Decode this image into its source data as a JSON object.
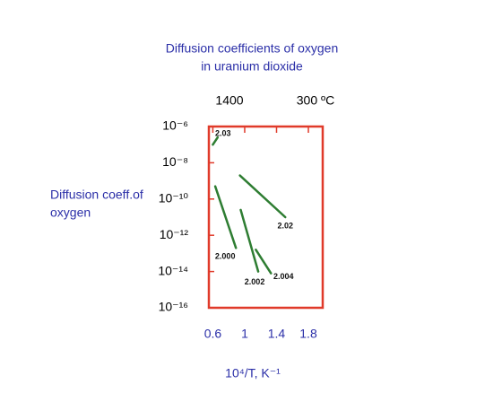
{
  "chart_data": {
    "type": "line",
    "title": [
      "Diffusion coefficients of oxygen",
      "in uranium dioxide"
    ],
    "top_axis_labels": [
      "1400",
      "300 ºC"
    ],
    "ylabel": [
      "Diffusion coeff.of",
      "oxygen"
    ],
    "xlabel": "10⁴/T, K⁻¹",
    "xlim": [
      0.55,
      1.98
    ],
    "xticks": [
      0.6,
      1,
      1.4,
      1.8
    ],
    "ylim": [
      1e-16,
      1e-06
    ],
    "log_y": true,
    "yticks": [
      {
        "value": 1e-06,
        "label": "10⁻⁶"
      },
      {
        "value": 1e-08,
        "label": "10⁻⁸"
      },
      {
        "value": 1e-10,
        "label": "10⁻¹⁰"
      },
      {
        "value": 1e-12,
        "label": "10⁻¹²"
      },
      {
        "value": 1e-14,
        "label": "10⁻¹⁴"
      },
      {
        "value": 1e-16,
        "label": "10⁻¹⁶"
      }
    ],
    "frame_color": "#e03a2a",
    "series": [
      {
        "name": "2.03",
        "color": "#2e7d32",
        "x": [
          0.6,
          0.66
        ],
        "values": [
          1e-07,
          2.5e-07
        ]
      },
      {
        "name": "2.02",
        "color": "#2e7d32",
        "x": [
          0.94,
          1.51
        ],
        "values": [
          2e-09,
          1e-11
        ]
      },
      {
        "name": "2.000",
        "color": "#2e7d32",
        "x": [
          0.63,
          0.89
        ],
        "values": [
          5e-10,
          2e-13
        ]
      },
      {
        "name": "2.002",
        "color": "#2e7d32",
        "x": [
          0.95,
          1.17
        ],
        "values": [
          2.5e-11,
          1e-14
        ]
      },
      {
        "name": "2.004",
        "color": "#2e7d32",
        "x": [
          1.14,
          1.33
        ],
        "values": [
          1.6e-13,
          8e-15
        ]
      }
    ]
  }
}
